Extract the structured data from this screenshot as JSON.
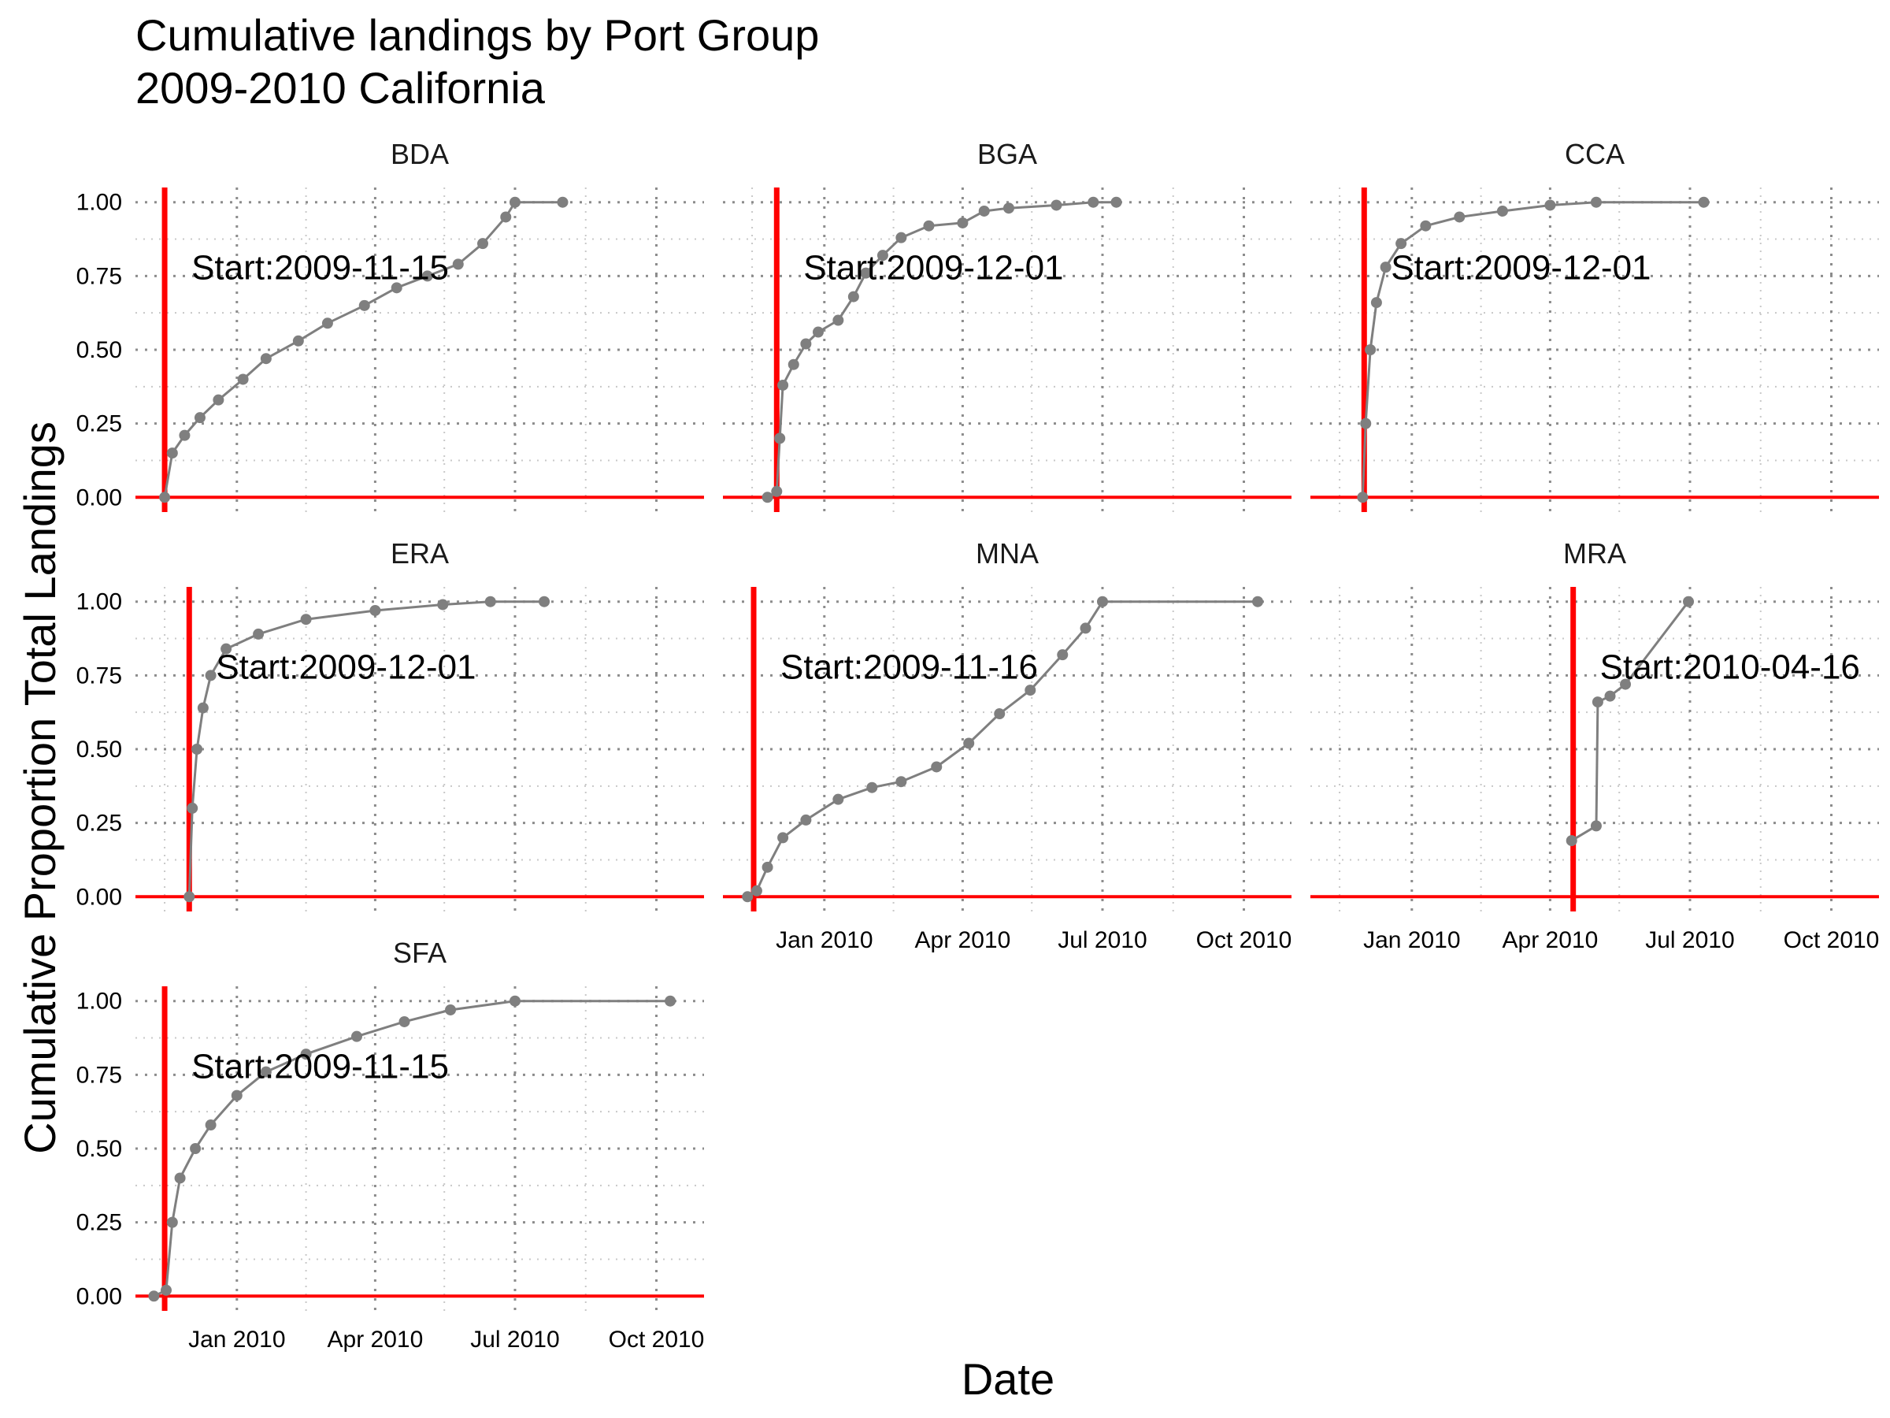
{
  "title_line1": "Cumulative landings by Port Group",
  "title_line2": "2009-2010 California",
  "chart_data": {
    "type": "line",
    "subtype": "faceted cumulative step-line with points",
    "xlabel": "Date",
    "ylabel": "Cumulative Proportion Total Landings",
    "xlim": [
      "2009-10-27",
      "2010-11-01"
    ],
    "ylim": [
      -0.05,
      1.05
    ],
    "x_ticks": [
      {
        "date": "2010-01-01",
        "label": "Jan 2010"
      },
      {
        "date": "2010-04-01",
        "label": "Apr 2010"
      },
      {
        "date": "2010-07-01",
        "label": "Jul 2010"
      },
      {
        "date": "2010-10-01",
        "label": "Oct 2010"
      }
    ],
    "x_minor_ticks": [
      "2009-11-15",
      "2010-02-15",
      "2010-05-16",
      "2010-08-16"
    ],
    "y_ticks": [
      {
        "value": 0.0,
        "label": "0.00"
      },
      {
        "value": 0.25,
        "label": "0.25"
      },
      {
        "value": 0.5,
        "label": "0.50"
      },
      {
        "value": 0.75,
        "label": "0.75"
      },
      {
        "value": 1.0,
        "label": "1.00"
      }
    ],
    "y_minor_ticks": [
      0.125,
      0.375,
      0.625,
      0.875
    ],
    "grid": "dotted",
    "line_color": "#7f7f7f",
    "reference_color": "#ff0000",
    "facets": [
      {
        "label": "BDA",
        "start": "2009-11-15",
        "annotation": "Start:2009-11-15",
        "points": [
          [
            "2009-11-15",
            0.0
          ],
          [
            "2009-11-20",
            0.15
          ],
          [
            "2009-11-28",
            0.21
          ],
          [
            "2009-12-08",
            0.27
          ],
          [
            "2009-12-20",
            0.33
          ],
          [
            "2010-01-05",
            0.4
          ],
          [
            "2010-01-20",
            0.47
          ],
          [
            "2010-02-10",
            0.53
          ],
          [
            "2010-03-01",
            0.59
          ],
          [
            "2010-03-25",
            0.65
          ],
          [
            "2010-04-15",
            0.71
          ],
          [
            "2010-05-05",
            0.75
          ],
          [
            "2010-05-25",
            0.79
          ],
          [
            "2010-06-10",
            0.86
          ],
          [
            "2010-06-25",
            0.95
          ],
          [
            "2010-07-01",
            1.0
          ],
          [
            "2010-08-01",
            1.0
          ]
        ]
      },
      {
        "label": "BGA",
        "start": "2009-12-01",
        "annotation": "Start:2009-12-01",
        "points": [
          [
            "2009-11-25",
            0.0
          ],
          [
            "2009-12-01",
            0.02
          ],
          [
            "2009-12-03",
            0.2
          ],
          [
            "2009-12-05",
            0.38
          ],
          [
            "2009-12-12",
            0.45
          ],
          [
            "2009-12-20",
            0.52
          ],
          [
            "2009-12-28",
            0.56
          ],
          [
            "2010-01-10",
            0.6
          ],
          [
            "2010-01-20",
            0.68
          ],
          [
            "2010-01-28",
            0.76
          ],
          [
            "2010-02-08",
            0.82
          ],
          [
            "2010-02-20",
            0.88
          ],
          [
            "2010-03-10",
            0.92
          ],
          [
            "2010-04-01",
            0.93
          ],
          [
            "2010-04-15",
            0.97
          ],
          [
            "2010-05-01",
            0.98
          ],
          [
            "2010-06-01",
            0.99
          ],
          [
            "2010-06-25",
            1.0
          ],
          [
            "2010-07-10",
            1.0
          ]
        ]
      },
      {
        "label": "CCA",
        "start": "2009-12-01",
        "annotation": "Start:2009-12-01",
        "points": [
          [
            "2009-11-30",
            0.0
          ],
          [
            "2009-12-02",
            0.25
          ],
          [
            "2009-12-05",
            0.5
          ],
          [
            "2009-12-09",
            0.66
          ],
          [
            "2009-12-15",
            0.78
          ],
          [
            "2009-12-25",
            0.86
          ],
          [
            "2010-01-10",
            0.92
          ],
          [
            "2010-02-01",
            0.95
          ],
          [
            "2010-03-01",
            0.97
          ],
          [
            "2010-04-01",
            0.99
          ],
          [
            "2010-05-01",
            1.0
          ],
          [
            "2010-07-10",
            1.0
          ]
        ]
      },
      {
        "label": "ERA",
        "start": "2009-12-01",
        "annotation": "Start:2009-12-01",
        "points": [
          [
            "2009-12-01",
            0.0
          ],
          [
            "2009-12-03",
            0.3
          ],
          [
            "2009-12-06",
            0.5
          ],
          [
            "2009-12-10",
            0.64
          ],
          [
            "2009-12-15",
            0.75
          ],
          [
            "2009-12-25",
            0.84
          ],
          [
            "2010-01-15",
            0.89
          ],
          [
            "2010-02-15",
            0.94
          ],
          [
            "2010-04-01",
            0.97
          ],
          [
            "2010-05-15",
            0.99
          ],
          [
            "2010-06-15",
            1.0
          ],
          [
            "2010-07-20",
            1.0
          ]
        ]
      },
      {
        "label": "MNA",
        "start": "2009-11-16",
        "annotation": "Start:2009-11-16",
        "points": [
          [
            "2009-11-12",
            0.0
          ],
          [
            "2009-11-18",
            0.02
          ],
          [
            "2009-11-25",
            0.1
          ],
          [
            "2009-12-05",
            0.2
          ],
          [
            "2009-12-20",
            0.26
          ],
          [
            "2010-01-10",
            0.33
          ],
          [
            "2010-02-01",
            0.37
          ],
          [
            "2010-02-20",
            0.39
          ],
          [
            "2010-03-15",
            0.44
          ],
          [
            "2010-04-05",
            0.52
          ],
          [
            "2010-04-25",
            0.62
          ],
          [
            "2010-05-15",
            0.7
          ],
          [
            "2010-06-05",
            0.82
          ],
          [
            "2010-06-20",
            0.91
          ],
          [
            "2010-07-01",
            1.0
          ],
          [
            "2010-10-10",
            1.0
          ]
        ]
      },
      {
        "label": "MRA",
        "start": "2010-04-16",
        "annotation": "Start:2010-04-16",
        "points": [
          [
            "2010-04-15",
            0.19
          ],
          [
            "2010-05-01",
            0.24
          ],
          [
            "2010-05-02",
            0.66
          ],
          [
            "2010-05-10",
            0.68
          ],
          [
            "2010-05-20",
            0.72
          ],
          [
            "2010-06-30",
            1.0
          ]
        ]
      },
      {
        "label": "SFA",
        "start": "2009-11-15",
        "annotation": "Start:2009-11-15",
        "points": [
          [
            "2009-11-08",
            0.0
          ],
          [
            "2009-11-16",
            0.02
          ],
          [
            "2009-11-20",
            0.25
          ],
          [
            "2009-11-25",
            0.4
          ],
          [
            "2009-12-05",
            0.5
          ],
          [
            "2009-12-15",
            0.58
          ],
          [
            "2010-01-01",
            0.68
          ],
          [
            "2010-01-20",
            0.76
          ],
          [
            "2010-02-15",
            0.82
          ],
          [
            "2010-03-20",
            0.88
          ],
          [
            "2010-04-20",
            0.93
          ],
          [
            "2010-05-20",
            0.97
          ],
          [
            "2010-07-01",
            1.0
          ],
          [
            "2010-10-10",
            1.0
          ]
        ]
      }
    ]
  }
}
